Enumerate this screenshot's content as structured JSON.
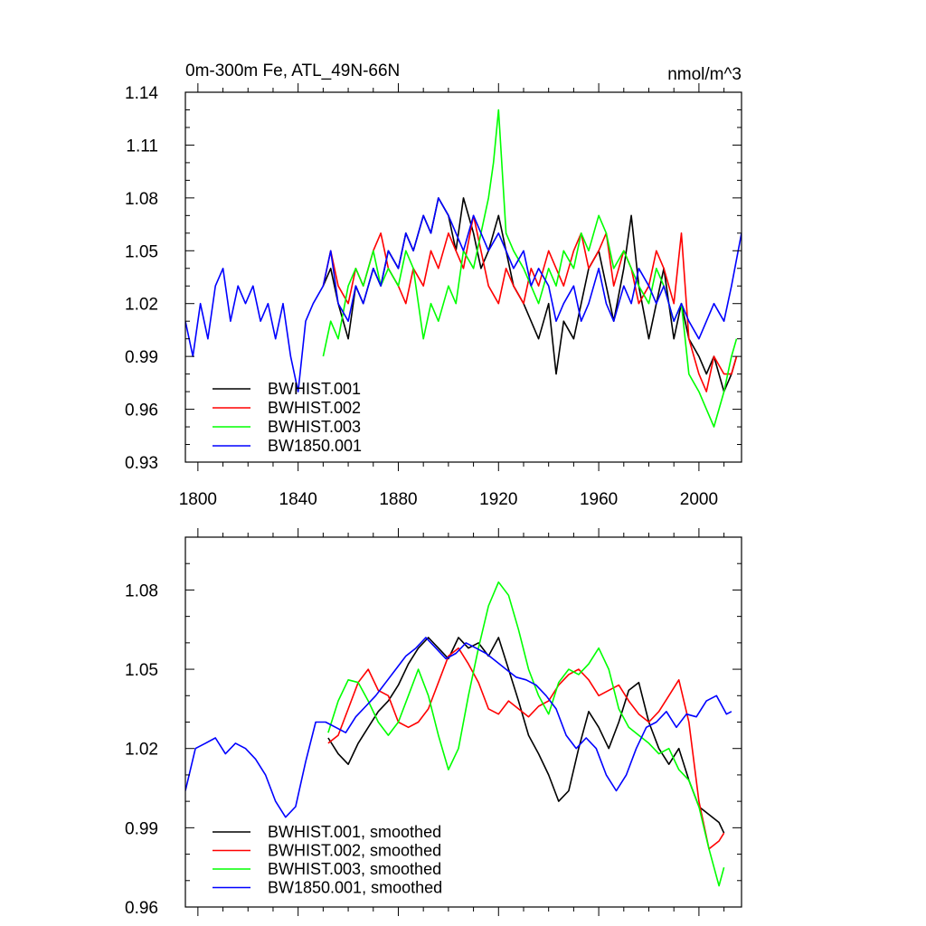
{
  "chart_data": [
    {
      "type": "line",
      "title": "0m-300m Fe, ATL_49N-66N",
      "units": "nmol/m^3",
      "xlim": [
        1795,
        2017
      ],
      "ylim": [
        0.93,
        1.14
      ],
      "xticks": [
        1800,
        1840,
        1880,
        1920,
        1960,
        2000
      ],
      "xtick_labels": [
        "1800",
        "1840",
        "1880",
        "1920",
        "1960",
        "2000"
      ],
      "yticks": [
        0.93,
        0.96,
        0.99,
        1.02,
        1.05,
        1.08,
        1.11,
        1.14
      ],
      "ytick_labels": [
        "0.93",
        "0.96",
        "0.99",
        "1.02",
        "1.05",
        "1.08",
        "1.11",
        "1.14"
      ],
      "legend": [
        "BWHIST.001",
        "BWHIST.002",
        "BWHIST.003",
        "BW1850.001"
      ],
      "legend_position": "bottom-left",
      "series": [
        {
          "name": "BWHIST.001",
          "color": "#000000",
          "x": [
            1850,
            1853,
            1856,
            1860,
            1863,
            1866,
            1870,
            1873,
            1876,
            1880,
            1883,
            1886,
            1890,
            1893,
            1896,
            1900,
            1903,
            1906,
            1910,
            1913,
            1916,
            1920,
            1923,
            1926,
            1930,
            1933,
            1936,
            1940,
            1943,
            1946,
            1950,
            1953,
            1956,
            1960,
            1963,
            1966,
            1970,
            1973,
            1976,
            1980,
            1983,
            1986,
            1990,
            1993,
            1996,
            2000,
            2003,
            2006,
            2010,
            2013,
            2015
          ],
          "y": [
            1.03,
            1.04,
            1.02,
            1.0,
            1.03,
            1.02,
            1.04,
            1.03,
            1.05,
            1.04,
            1.06,
            1.05,
            1.07,
            1.06,
            1.08,
            1.07,
            1.05,
            1.08,
            1.06,
            1.04,
            1.05,
            1.07,
            1.05,
            1.03,
            1.02,
            1.01,
            1.0,
            1.02,
            0.98,
            1.01,
            1.0,
            1.02,
            1.04,
            1.05,
            1.03,
            1.01,
            1.04,
            1.07,
            1.03,
            1.0,
            1.02,
            1.04,
            1.0,
            1.02,
            1.0,
            0.99,
            0.98,
            0.99,
            0.97,
            0.98,
            0.99
          ]
        },
        {
          "name": "BWHIST.002",
          "color": "#ff0000",
          "x": [
            1850,
            1853,
            1856,
            1860,
            1863,
            1866,
            1870,
            1873,
            1876,
            1880,
            1883,
            1886,
            1890,
            1893,
            1896,
            1900,
            1903,
            1906,
            1910,
            1913,
            1916,
            1920,
            1923,
            1926,
            1930,
            1933,
            1936,
            1940,
            1943,
            1946,
            1950,
            1953,
            1956,
            1960,
            1963,
            1966,
            1970,
            1973,
            1976,
            1980,
            1983,
            1986,
            1990,
            1993,
            1996,
            2000,
            2003,
            2006,
            2010,
            2013,
            2015
          ],
          "y": [
            1.03,
            1.05,
            1.03,
            1.02,
            1.04,
            1.03,
            1.05,
            1.06,
            1.04,
            1.03,
            1.02,
            1.04,
            1.03,
            1.05,
            1.04,
            1.06,
            1.05,
            1.04,
            1.07,
            1.05,
            1.03,
            1.02,
            1.04,
            1.03,
            1.02,
            1.04,
            1.03,
            1.05,
            1.04,
            1.03,
            1.05,
            1.06,
            1.04,
            1.05,
            1.06,
            1.03,
            1.05,
            1.04,
            1.02,
            1.03,
            1.05,
            1.04,
            1.02,
            1.06,
            1.0,
            0.98,
            0.97,
            0.99,
            0.98,
            0.98,
            0.99
          ]
        },
        {
          "name": "BWHIST.003",
          "color": "#00ff00",
          "x": [
            1850,
            1853,
            1856,
            1860,
            1863,
            1866,
            1870,
            1873,
            1876,
            1880,
            1883,
            1886,
            1890,
            1893,
            1896,
            1900,
            1903,
            1906,
            1910,
            1913,
            1916,
            1918,
            1920,
            1923,
            1926,
            1930,
            1933,
            1936,
            1940,
            1943,
            1946,
            1950,
            1953,
            1956,
            1960,
            1963,
            1966,
            1970,
            1973,
            1976,
            1980,
            1983,
            1986,
            1990,
            1993,
            1996,
            2000,
            2003,
            2006,
            2010,
            2013,
            2015
          ],
          "y": [
            0.99,
            1.01,
            1.0,
            1.03,
            1.04,
            1.03,
            1.05,
            1.03,
            1.04,
            1.03,
            1.05,
            1.04,
            1.0,
            1.02,
            1.01,
            1.03,
            1.02,
            1.05,
            1.04,
            1.06,
            1.08,
            1.1,
            1.13,
            1.06,
            1.05,
            1.04,
            1.03,
            1.02,
            1.04,
            1.03,
            1.05,
            1.04,
            1.06,
            1.05,
            1.07,
            1.06,
            1.04,
            1.05,
            1.04,
            1.03,
            1.02,
            1.04,
            1.03,
            1.01,
            1.02,
            0.98,
            0.97,
            0.96,
            0.95,
            0.97,
            0.99,
            1.0
          ]
        },
        {
          "name": "BW1850.001",
          "color": "#0000ff",
          "x": [
            1795,
            1798,
            1801,
            1804,
            1807,
            1810,
            1813,
            1816,
            1819,
            1822,
            1825,
            1828,
            1831,
            1834,
            1837,
            1840,
            1843,
            1846,
            1850,
            1853,
            1856,
            1860,
            1863,
            1866,
            1870,
            1873,
            1876,
            1880,
            1883,
            1886,
            1890,
            1893,
            1896,
            1900,
            1903,
            1906,
            1910,
            1913,
            1916,
            1920,
            1923,
            1926,
            1930,
            1933,
            1936,
            1940,
            1943,
            1946,
            1950,
            1953,
            1956,
            1960,
            1963,
            1966,
            1970,
            1973,
            1976,
            1980,
            1983,
            1986,
            1990,
            1993,
            1996,
            2000,
            2003,
            2006,
            2010,
            2013,
            2017
          ],
          "y": [
            1.01,
            0.99,
            1.02,
            1.0,
            1.03,
            1.04,
            1.01,
            1.03,
            1.02,
            1.03,
            1.01,
            1.02,
            1.0,
            1.02,
            0.99,
            0.97,
            1.01,
            1.02,
            1.03,
            1.05,
            1.02,
            1.01,
            1.03,
            1.02,
            1.04,
            1.03,
            1.05,
            1.04,
            1.06,
            1.05,
            1.07,
            1.06,
            1.08,
            1.07,
            1.06,
            1.05,
            1.07,
            1.06,
            1.05,
            1.06,
            1.05,
            1.04,
            1.05,
            1.03,
            1.04,
            1.03,
            1.01,
            1.02,
            1.03,
            1.01,
            1.02,
            1.04,
            1.02,
            1.01,
            1.03,
            1.02,
            1.04,
            1.03,
            1.02,
            1.03,
            1.01,
            1.02,
            1.01,
            1.0,
            1.01,
            1.02,
            1.01,
            1.03,
            1.06
          ]
        }
      ]
    },
    {
      "type": "line",
      "title": "",
      "xlim": [
        1795,
        2017
      ],
      "ylim": [
        0.96,
        1.1
      ],
      "xticks": [
        1800,
        1840,
        1880,
        1920,
        1960,
        2000
      ],
      "yticks": [
        0.96,
        0.99,
        1.02,
        1.05,
        1.08
      ],
      "ytick_labels": [
        "0.96",
        "0.99",
        "1.02",
        "1.05",
        "1.08"
      ],
      "legend": [
        "BWHIST.001, smoothed",
        "BWHIST.002, smoothed",
        "BWHIST.003, smoothed",
        "BW1850.001, smoothed"
      ],
      "legend_position": "bottom-left",
      "series": [
        {
          "name": "BWHIST.001, smoothed",
          "color": "#000000",
          "x": [
            1852,
            1856,
            1860,
            1864,
            1868,
            1872,
            1876,
            1880,
            1884,
            1888,
            1892,
            1896,
            1900,
            1904,
            1908,
            1912,
            1916,
            1920,
            1924,
            1928,
            1932,
            1936,
            1940,
            1944,
            1948,
            1952,
            1956,
            1960,
            1964,
            1968,
            1972,
            1976,
            1980,
            1984,
            1988,
            1992,
            1996,
            2000,
            2004,
            2008,
            2010
          ],
          "y": [
            1.024,
            1.018,
            1.014,
            1.022,
            1.028,
            1.034,
            1.038,
            1.044,
            1.052,
            1.058,
            1.062,
            1.058,
            1.054,
            1.062,
            1.058,
            1.06,
            1.055,
            1.062,
            1.05,
            1.038,
            1.025,
            1.018,
            1.01,
            1.0,
            1.004,
            1.02,
            1.034,
            1.028,
            1.02,
            1.03,
            1.042,
            1.045,
            1.03,
            1.02,
            1.014,
            1.02,
            1.008,
            0.998,
            0.995,
            0.992,
            0.988
          ]
        },
        {
          "name": "BWHIST.002, smoothed",
          "color": "#ff0000",
          "x": [
            1852,
            1856,
            1860,
            1864,
            1868,
            1872,
            1876,
            1880,
            1884,
            1888,
            1892,
            1896,
            1900,
            1904,
            1908,
            1912,
            1916,
            1920,
            1924,
            1928,
            1932,
            1936,
            1940,
            1944,
            1948,
            1952,
            1956,
            1960,
            1964,
            1968,
            1972,
            1976,
            1980,
            1984,
            1988,
            1992,
            1996,
            2000,
            2004,
            2008,
            2010
          ],
          "y": [
            1.022,
            1.025,
            1.035,
            1.045,
            1.05,
            1.042,
            1.04,
            1.03,
            1.028,
            1.03,
            1.035,
            1.045,
            1.055,
            1.058,
            1.052,
            1.045,
            1.035,
            1.033,
            1.038,
            1.035,
            1.032,
            1.036,
            1.038,
            1.044,
            1.048,
            1.05,
            1.046,
            1.04,
            1.042,
            1.044,
            1.038,
            1.033,
            1.03,
            1.034,
            1.04,
            1.046,
            1.03,
            1.0,
            0.982,
            0.985,
            0.988
          ]
        },
        {
          "name": "BWHIST.003, smoothed",
          "color": "#00ff00",
          "x": [
            1852,
            1856,
            1860,
            1864,
            1868,
            1872,
            1876,
            1880,
            1884,
            1888,
            1892,
            1896,
            1900,
            1904,
            1908,
            1912,
            1916,
            1920,
            1924,
            1928,
            1932,
            1936,
            1940,
            1944,
            1948,
            1952,
            1956,
            1960,
            1964,
            1968,
            1972,
            1976,
            1980,
            1984,
            1988,
            1992,
            1996,
            2000,
            2004,
            2008,
            2010
          ],
          "y": [
            1.026,
            1.038,
            1.046,
            1.045,
            1.038,
            1.03,
            1.025,
            1.03,
            1.04,
            1.05,
            1.04,
            1.025,
            1.012,
            1.02,
            1.04,
            1.058,
            1.074,
            1.083,
            1.078,
            1.065,
            1.05,
            1.04,
            1.033,
            1.045,
            1.05,
            1.048,
            1.052,
            1.058,
            1.05,
            1.035,
            1.028,
            1.025,
            1.022,
            1.018,
            1.02,
            1.012,
            1.008,
            0.998,
            0.982,
            0.968,
            0.975
          ]
        },
        {
          "name": "BW1850.001, smoothed",
          "color": "#0000ff",
          "x": [
            1795,
            1799,
            1803,
            1807,
            1811,
            1815,
            1819,
            1823,
            1827,
            1831,
            1835,
            1839,
            1843,
            1847,
            1851,
            1855,
            1859,
            1863,
            1867,
            1871,
            1875,
            1879,
            1883,
            1887,
            1891,
            1895,
            1899,
            1903,
            1907,
            1911,
            1915,
            1919,
            1923,
            1927,
            1931,
            1935,
            1939,
            1943,
            1947,
            1951,
            1955,
            1959,
            1963,
            1967,
            1971,
            1975,
            1979,
            1983,
            1987,
            1991,
            1995,
            1999,
            2003,
            2007,
            2011,
            2013
          ],
          "y": [
            1.004,
            1.02,
            1.022,
            1.024,
            1.018,
            1.022,
            1.02,
            1.016,
            1.01,
            1.0,
            0.994,
            0.998,
            1.015,
            1.03,
            1.03,
            1.028,
            1.026,
            1.032,
            1.036,
            1.04,
            1.045,
            1.05,
            1.055,
            1.058,
            1.062,
            1.058,
            1.054,
            1.056,
            1.06,
            1.058,
            1.056,
            1.053,
            1.05,
            1.047,
            1.046,
            1.044,
            1.04,
            1.035,
            1.025,
            1.02,
            1.024,
            1.02,
            1.01,
            1.004,
            1.01,
            1.02,
            1.028,
            1.03,
            1.034,
            1.028,
            1.033,
            1.032,
            1.038,
            1.04,
            1.033,
            1.034
          ]
        }
      ]
    }
  ]
}
